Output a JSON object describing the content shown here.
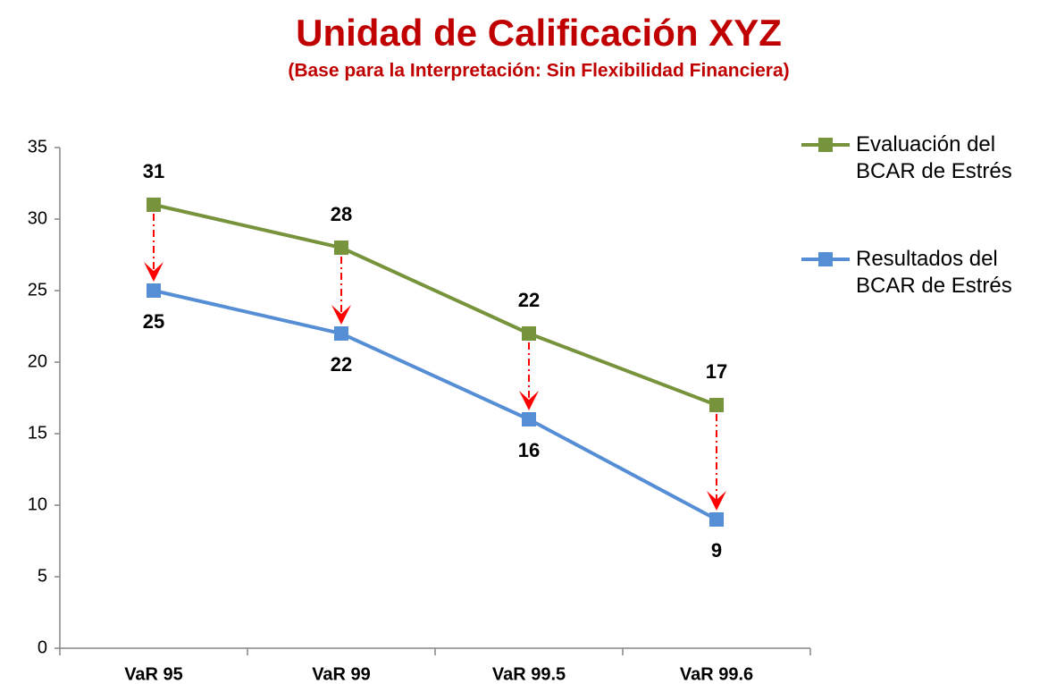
{
  "chart_data": {
    "type": "line",
    "title": "Unidad de Calificación XYZ",
    "subtitle": "(Base para la Interpretación: Sin Flexibilidad Financiera)",
    "categories": [
      "VaR 95",
      "VaR 99",
      "VaR 99.5",
      "VaR 99.6"
    ],
    "series": [
      {
        "name": "Evaluación del BCAR de Estrés",
        "color": "#77933c",
        "values": [
          31,
          28,
          22,
          17
        ]
      },
      {
        "name": "Resultados del BCAR de Estrés",
        "color": "#558ed5",
        "values": [
          25,
          22,
          16,
          9
        ]
      }
    ],
    "ylim": [
      0,
      35
    ],
    "yticks": [
      0,
      5,
      10,
      15,
      20,
      25,
      30,
      35
    ],
    "title_color": "#c00000",
    "arrow_color": "#ff0000"
  }
}
